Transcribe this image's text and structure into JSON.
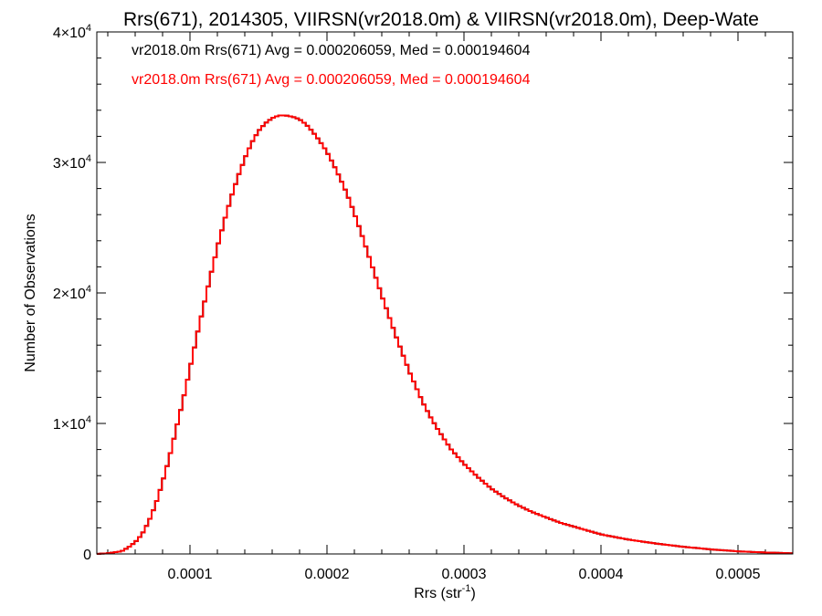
{
  "chart_data": {
    "type": "line",
    "title": "Rrs(671), 2014305, VIIRSN(vr2018.0m) & VIIRSN(vr2018.0m), Deep-Wate",
    "xlabel": "Rrs (str",
    "xlabel_sup": "-1",
    "xlabel_suffix": ")",
    "ylabel": "Number of Observations",
    "xlim": [
      3.2e-05,
      0.00054
    ],
    "ylim": [
      0,
      40000
    ],
    "x_ticks": [
      {
        "value": 0.0001,
        "label": "0.0001"
      },
      {
        "value": 0.0002,
        "label": "0.0002"
      },
      {
        "value": 0.0003,
        "label": "0.0003"
      },
      {
        "value": 0.0004,
        "label": "0.0004"
      },
      {
        "value": 0.0005,
        "label": "0.0005"
      }
    ],
    "y_ticks": [
      {
        "value": 0,
        "label": "0",
        "sup": ""
      },
      {
        "value": 10000,
        "label": "1×10",
        "sup": "4"
      },
      {
        "value": 20000,
        "label": "2×10",
        "sup": "4"
      },
      {
        "value": 30000,
        "label": "3×10",
        "sup": "4"
      },
      {
        "value": 40000,
        "label": "4×10",
        "sup": "4"
      }
    ],
    "legend_position": "top-left",
    "legend": [
      {
        "text": "vr2018.0m Rrs(671) Avg = 0.000206059, Med = 0.000194604",
        "color": "#000000"
      },
      {
        "text": "vr2018.0m Rrs(671) Avg = 0.000206059, Med = 0.000194604",
        "color": "#ff0000"
      }
    ],
    "series": [
      {
        "color": "#000000",
        "x": [
          3.2e-05,
          4e-05,
          5e-05,
          5.5e-05,
          6e-05,
          6.5e-05,
          7e-05,
          7.5e-05,
          8e-05,
          8.5e-05,
          9e-05,
          9.5e-05,
          0.0001,
          0.000105,
          0.00011,
          0.000115,
          0.00012,
          0.000125,
          0.00013,
          0.000135,
          0.00014,
          0.000145,
          0.00015,
          0.000155,
          0.00016,
          0.000165,
          0.00017,
          0.000175,
          0.00018,
          0.000185,
          0.00019,
          0.000195,
          0.0002,
          0.000205,
          0.00021,
          0.000215,
          0.00022,
          0.000225,
          0.00023,
          0.000235,
          0.00024,
          0.000245,
          0.00025,
          0.000255,
          0.00026,
          0.000265,
          0.00027,
          0.000275,
          0.00028,
          0.000285,
          0.00029,
          0.000295,
          0.0003,
          0.00031,
          0.00032,
          0.00033,
          0.00034,
          0.00035,
          0.00036,
          0.00037,
          0.00038,
          0.00039,
          0.0004,
          0.00042,
          0.00044,
          0.00046,
          0.00048,
          0.0005,
          0.00052,
          0.00054
        ],
        "y": [
          0,
          50,
          200,
          500,
          900,
          1500,
          2500,
          3800,
          5500,
          7400,
          9600,
          11800,
          14200,
          16700,
          19000,
          21300,
          23500,
          25500,
          27300,
          28900,
          30300,
          31500,
          32400,
          33000,
          33400,
          33600,
          33600,
          33500,
          33300,
          32900,
          32300,
          31600,
          30800,
          29800,
          28700,
          27500,
          26100,
          24600,
          23000,
          21400,
          19800,
          18300,
          16800,
          15400,
          14000,
          12800,
          11600,
          10600,
          9700,
          8900,
          8100,
          7500,
          6900,
          5900,
          5000,
          4300,
          3700,
          3200,
          2800,
          2400,
          2100,
          1800,
          1500,
          1100,
          800,
          550,
          350,
          200,
          110,
          50
        ]
      },
      {
        "color": "#ff0000",
        "x": [
          3.2e-05,
          4e-05,
          5e-05,
          5.5e-05,
          6e-05,
          6.5e-05,
          7e-05,
          7.5e-05,
          8e-05,
          8.5e-05,
          9e-05,
          9.5e-05,
          0.0001,
          0.000105,
          0.00011,
          0.000115,
          0.00012,
          0.000125,
          0.00013,
          0.000135,
          0.00014,
          0.000145,
          0.00015,
          0.000155,
          0.00016,
          0.000165,
          0.00017,
          0.000175,
          0.00018,
          0.000185,
          0.00019,
          0.000195,
          0.0002,
          0.000205,
          0.00021,
          0.000215,
          0.00022,
          0.000225,
          0.00023,
          0.000235,
          0.00024,
          0.000245,
          0.00025,
          0.000255,
          0.00026,
          0.000265,
          0.00027,
          0.000275,
          0.00028,
          0.000285,
          0.00029,
          0.000295,
          0.0003,
          0.00031,
          0.00032,
          0.00033,
          0.00034,
          0.00035,
          0.00036,
          0.00037,
          0.00038,
          0.00039,
          0.0004,
          0.00042,
          0.00044,
          0.00046,
          0.00048,
          0.0005,
          0.00052,
          0.00054
        ],
        "y": [
          0,
          50,
          200,
          500,
          900,
          1500,
          2500,
          3800,
          5500,
          7400,
          9600,
          11800,
          14200,
          16700,
          19000,
          21300,
          23500,
          25500,
          27300,
          28900,
          30300,
          31500,
          32400,
          33000,
          33400,
          33600,
          33600,
          33500,
          33300,
          32900,
          32300,
          31600,
          30800,
          29800,
          28700,
          27500,
          26100,
          24600,
          23000,
          21400,
          19800,
          18300,
          16800,
          15400,
          14000,
          12800,
          11600,
          10600,
          9700,
          8900,
          8100,
          7500,
          6900,
          5900,
          5000,
          4300,
          3700,
          3200,
          2800,
          2400,
          2100,
          1800,
          1500,
          1100,
          800,
          550,
          350,
          200,
          110,
          50
        ]
      }
    ]
  }
}
